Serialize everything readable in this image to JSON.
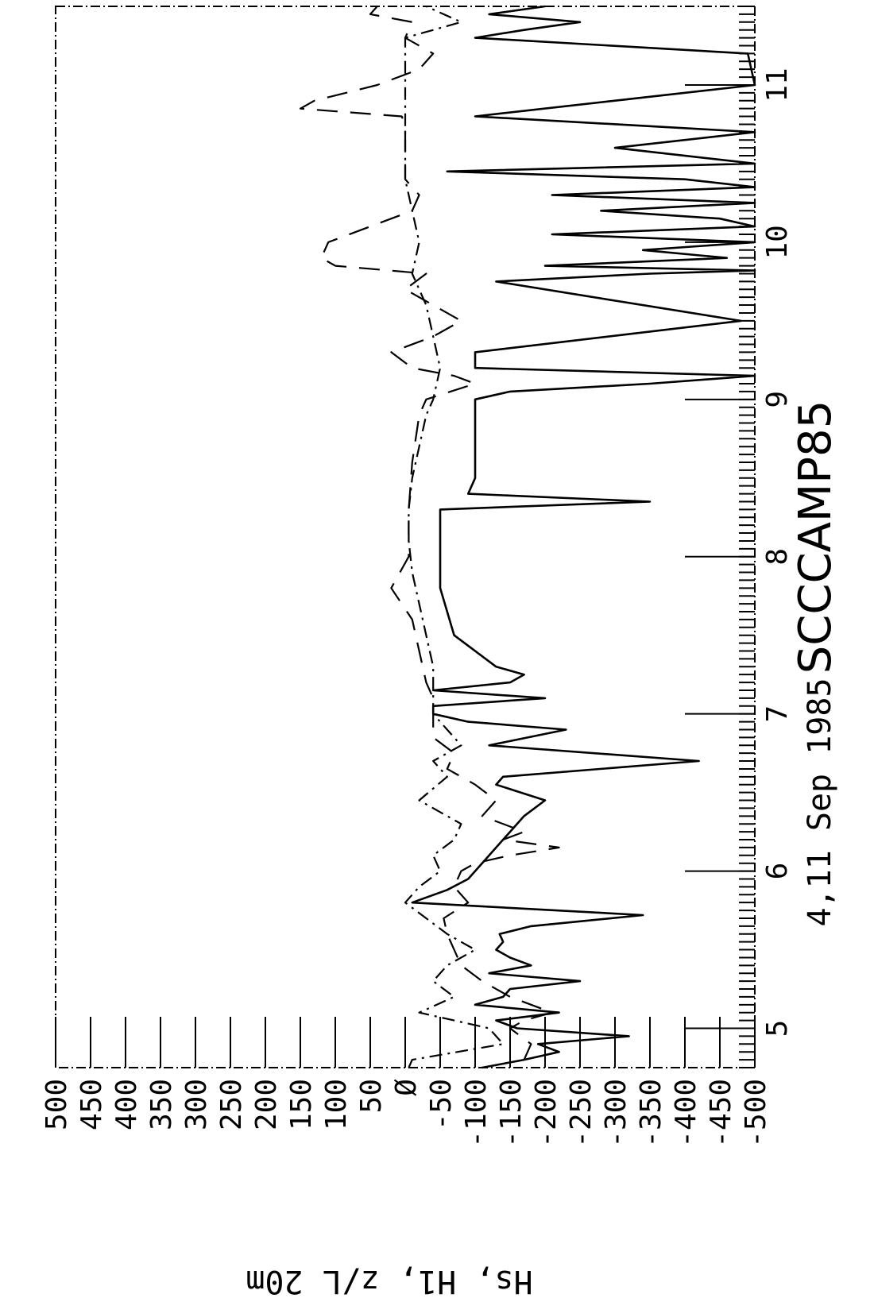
{
  "chart_data": {
    "type": "line",
    "title": "SCCCAMP85",
    "xlabel": "4,11 Sep 1985",
    "ylabel": "Hs, H1, z/L 20m",
    "xlim": [
      4.75,
      11.5
    ],
    "ylim": [
      -500,
      500
    ],
    "grid": false,
    "orientation": "rotated 90 degrees clockwise",
    "x_ticks": [
      5,
      6,
      7,
      8,
      9,
      10,
      11
    ],
    "x_tick_labels": [
      "5",
      "6",
      "7",
      "8",
      "9",
      "10",
      "11"
    ],
    "y_ticks": [
      500,
      450,
      400,
      350,
      300,
      250,
      200,
      150,
      100,
      50,
      0,
      -50,
      -100,
      -150,
      -200,
      -250,
      -300,
      -350,
      -400,
      -450,
      -500
    ],
    "y_tick_labels": [
      "500",
      "450",
      "400",
      "350",
      "300",
      "250",
      "200",
      "150",
      "100",
      "50",
      "Ø",
      "-50",
      "-100",
      "-150",
      "-200",
      "-250",
      "-300",
      "-350",
      "-400",
      "-450",
      "-500"
    ],
    "series": [
      {
        "style": "solid",
        "x": [
          4.75,
          4.8,
          4.85,
          4.9,
          4.95,
          5.0,
          5.05,
          5.1,
          5.15,
          5.2,
          5.25,
          5.3,
          5.35,
          5.4,
          5.45,
          5.5,
          5.55,
          5.6,
          5.65,
          5.72,
          5.8,
          5.88,
          5.95,
          6.05,
          6.15,
          6.25,
          6.35,
          6.45,
          6.55,
          6.6,
          6.7,
          6.8,
          6.9,
          6.95,
          7.0,
          7.05,
          7.1,
          7.15,
          7.2,
          7.25,
          7.3,
          7.5,
          7.8,
          8.0,
          8.2,
          8.3,
          8.35,
          8.4,
          8.5,
          8.6,
          8.8,
          9.0,
          9.05,
          9.1,
          9.15,
          9.2,
          9.3,
          9.5,
          9.75,
          9.8,
          9.82,
          9.85,
          9.9,
          9.95,
          10.0,
          10.05,
          10.1,
          10.15,
          10.2,
          10.25,
          10.3,
          10.35,
          10.4,
          10.45,
          10.5,
          10.6,
          10.7,
          10.8,
          11.0,
          11.2,
          11.3,
          11.35,
          11.4,
          11.45,
          11.5
        ],
        "y": [
          -110,
          -170,
          -220,
          -190,
          -320,
          -160,
          -130,
          -220,
          -100,
          -140,
          -150,
          -250,
          -120,
          -180,
          -150,
          -130,
          -140,
          -135,
          -180,
          -340,
          -10,
          -60,
          -90,
          -110,
          -130,
          -150,
          -170,
          -200,
          -130,
          -140,
          -420,
          -120,
          -230,
          -90,
          -40,
          -40,
          -200,
          -40,
          -150,
          -170,
          -130,
          -70,
          -50,
          -50,
          -50,
          -50,
          -350,
          -90,
          -100,
          -100,
          -100,
          -100,
          -150,
          -350,
          -500,
          -100,
          -100,
          -480,
          -130,
          -350,
          -500,
          -200,
          -460,
          -340,
          -500,
          -210,
          -500,
          -450,
          -280,
          -500,
          -210,
          -500,
          -400,
          -60,
          -500,
          -300,
          -500,
          -100,
          -500,
          -490,
          -100,
          -170,
          -250,
          -120,
          -200
        ]
      },
      {
        "style": "dashed",
        "x": [
          4.8,
          4.9,
          5.0,
          5.05,
          5.1,
          5.15,
          5.2,
          5.3,
          5.4,
          5.5,
          5.6,
          5.7,
          5.8,
          5.9,
          6.0,
          6.05,
          6.1,
          6.15,
          6.2,
          6.25,
          6.35,
          6.45,
          6.55,
          6.65,
          6.75,
          6.85,
          6.95,
          7.0,
          7.1,
          7.2,
          7.4,
          7.6,
          7.8,
          8.0,
          8.3,
          8.6,
          8.9,
          9.0,
          9.1,
          9.15,
          9.2,
          9.3,
          9.4,
          9.5,
          9.6,
          9.7,
          9.8,
          9.85,
          9.9,
          10.0,
          10.1,
          10.2,
          10.3,
          10.4,
          10.5,
          10.6,
          10.7,
          10.75,
          10.8,
          10.85,
          10.9,
          11.0,
          11.1,
          11.2,
          11.3,
          11.4,
          11.45,
          11.5
        ],
        "y": [
          -170,
          -180,
          -150,
          -170,
          -210,
          -180,
          -150,
          -110,
          -80,
          -70,
          -60,
          -55,
          -90,
          -70,
          -80,
          -100,
          -150,
          -220,
          -140,
          -170,
          -110,
          -130,
          -100,
          -60,
          -70,
          -40,
          -40,
          -40,
          -40,
          -30,
          -20,
          -10,
          20,
          -5,
          -5,
          -10,
          -20,
          -30,
          -100,
          -70,
          -10,
          20,
          -40,
          -80,
          -40,
          0,
          -30,
          100,
          120,
          110,
          50,
          -10,
          -20,
          0,
          0,
          0,
          0,
          0,
          5,
          150,
          130,
          40,
          -20,
          -40,
          0,
          -10,
          50,
          40
        ]
      },
      {
        "style": "dash-dot",
        "x": [
          4.75,
          4.8,
          4.9,
          5.0,
          5.1,
          5.2,
          5.3,
          5.4,
          5.5,
          5.6,
          5.7,
          5.8,
          5.9,
          6.0,
          6.1,
          6.2,
          6.3,
          6.45,
          6.6,
          6.7,
          6.8,
          6.9,
          7.0,
          7.1,
          7.3,
          7.5,
          7.7,
          7.9,
          8.1,
          8.3,
          8.5,
          8.7,
          8.9,
          9.0,
          9.2,
          9.4,
          9.6,
          9.8,
          10.0,
          10.2,
          10.4,
          10.6,
          10.8,
          11.0,
          11.1,
          11.2,
          11.3,
          11.4,
          11.5
        ],
        "y": [
          -5,
          -10,
          -140,
          -120,
          -20,
          -70,
          -40,
          -60,
          -100,
          -60,
          -30,
          0,
          -20,
          -50,
          -40,
          -70,
          -80,
          -20,
          -60,
          -40,
          -80,
          -60,
          -40,
          -40,
          -40,
          -30,
          -20,
          -10,
          -5,
          -5,
          -10,
          -20,
          -30,
          -40,
          -50,
          -40,
          -30,
          -10,
          -20,
          -10,
          0,
          0,
          0,
          0,
          0,
          0,
          0,
          -80,
          -30
        ]
      }
    ]
  }
}
